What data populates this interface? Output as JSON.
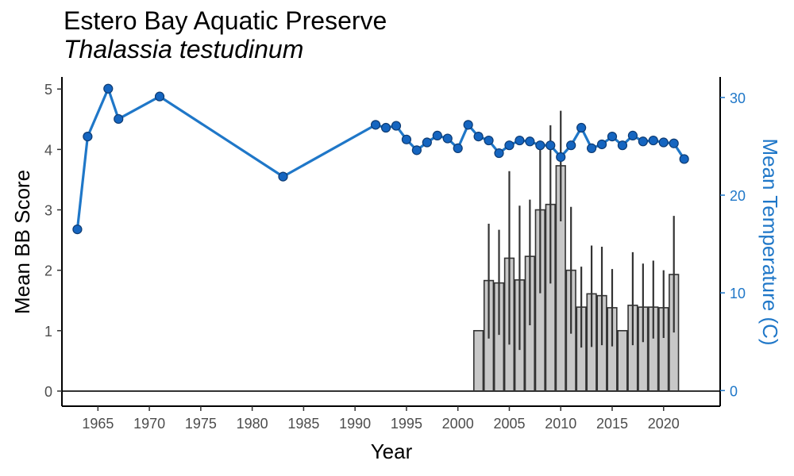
{
  "chart_data": {
    "type": "bar+line",
    "title": "Estero Bay Aquatic Preserve",
    "subtitle": "Thalassia testudinum",
    "xlabel": "Year",
    "ylabel": "Mean BB Score",
    "y2label": "Mean Temperature (C)",
    "xlim": [
      1961.5,
      2025.5
    ],
    "ylim": [
      -0.25,
      5.2
    ],
    "y2lim": [
      -1.6,
      32.1
    ],
    "x_ticks": [
      1965,
      1970,
      1975,
      1980,
      1985,
      1990,
      1995,
      2000,
      2005,
      2010,
      2015,
      2020
    ],
    "y_ticks": [
      0,
      1,
      2,
      3,
      4,
      5
    ],
    "y2_ticks": [
      0,
      10,
      20,
      30
    ],
    "colors": {
      "bars": "#c8c8c8",
      "bar_edge": "#333333",
      "line": "#1f77c8",
      "point": "#1565c0",
      "y2_axis": "#1f77c8"
    },
    "bb_series": {
      "name": "Mean BB Score",
      "x": [
        2002,
        2003,
        2004,
        2005,
        2006,
        2007,
        2008,
        2009,
        2010,
        2011,
        2012,
        2013,
        2014,
        2015,
        2016,
        2017,
        2018,
        2019,
        2020,
        2021
      ],
      "y": [
        1.0,
        1.83,
        1.79,
        2.2,
        1.84,
        2.23,
        3.0,
        3.09,
        3.73,
        2.0,
        1.39,
        1.61,
        1.58,
        1.38,
        1.0,
        1.42,
        1.39,
        1.39,
        1.38,
        1.93
      ],
      "low": [
        1.0,
        0.87,
        0.93,
        0.77,
        0.68,
        1.09,
        1.62,
        1.78,
        2.81,
        0.95,
        0.72,
        0.73,
        0.76,
        0.74,
        1.0,
        0.76,
        0.81,
        0.87,
        0.88,
        0.97
      ],
      "high": [
        1.0,
        2.77,
        2.67,
        3.64,
        3.07,
        3.17,
        4.03,
        4.4,
        4.64,
        3.05,
        2.06,
        2.41,
        2.39,
        2.02,
        1.0,
        2.3,
        2.11,
        2.16,
        2.0,
        2.9
      ]
    },
    "temp_series": {
      "name": "Mean Temperature (C)",
      "x": [
        1963,
        1964,
        1966,
        1967,
        1971,
        1983,
        1992,
        1993,
        1994,
        1995,
        1996,
        1997,
        1998,
        1999,
        2000,
        2001,
        2002,
        2003,
        2004,
        2005,
        2006,
        2007,
        2008,
        2009,
        2010,
        2011,
        2012,
        2013,
        2014,
        2015,
        2016,
        2017,
        2018,
        2019,
        2020,
        2021,
        2022
      ],
      "y": [
        16.5,
        26.0,
        30.9,
        27.8,
        30.1,
        21.9,
        27.2,
        26.9,
        27.1,
        25.7,
        24.6,
        25.4,
        26.1,
        25.8,
        24.8,
        27.2,
        26.0,
        25.6,
        24.3,
        25.1,
        25.6,
        25.5,
        25.1,
        25.1,
        23.9,
        25.1,
        26.9,
        24.8,
        25.2,
        26.0,
        25.1,
        26.1,
        25.5,
        25.6,
        25.4,
        25.3,
        23.7
      ]
    }
  }
}
